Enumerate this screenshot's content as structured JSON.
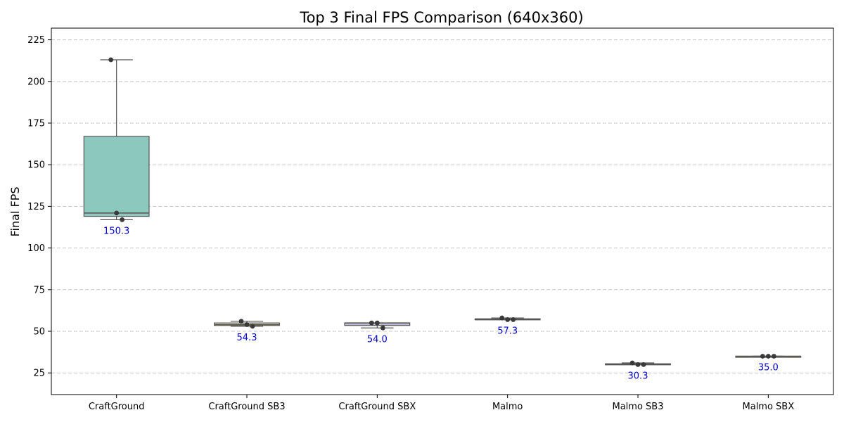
{
  "chart_data": {
    "type": "box",
    "title": "Top 3 Final FPS Comparison (640x360)",
    "xlabel": "",
    "ylabel": "Final FPS",
    "ylim": [
      12,
      232
    ],
    "yticks": [
      25,
      50,
      75,
      100,
      125,
      150,
      175,
      200,
      225
    ],
    "grid": true,
    "categories": [
      "CraftGround",
      "CraftGround SB3",
      "CraftGround SBX",
      "Malmo",
      "Malmo SB3",
      "Malmo SBX"
    ],
    "boxes": [
      {
        "name": "CraftGround",
        "color": "#8dc8be",
        "min": 117,
        "q1": 119,
        "median": 121,
        "q3": 167,
        "max": 213,
        "points": [
          213,
          121,
          117
        ],
        "mean_label": "150.3"
      },
      {
        "name": "CraftGround SB3",
        "color": "#f2f2b6",
        "min": 53,
        "q1": 53.5,
        "median": 54,
        "q3": 55,
        "max": 56,
        "points": [
          56,
          54,
          53
        ],
        "mean_label": "54.3"
      },
      {
        "name": "CraftGround SBX",
        "color": "#bdbad8",
        "min": 52,
        "q1": 53.5,
        "median": 55,
        "q3": 55,
        "max": 55,
        "points": [
          55,
          55,
          52
        ],
        "mean_label": "54.0"
      },
      {
        "name": "Malmo",
        "color": "#f18476",
        "min": 57,
        "q1": 57,
        "median": 57,
        "q3": 57.5,
        "max": 58,
        "points": [
          58,
          57,
          57
        ],
        "mean_label": "57.3"
      },
      {
        "name": "Malmo SB3",
        "color": "#83b1d3",
        "min": 30,
        "q1": 30,
        "median": 30,
        "q3": 30.5,
        "max": 31,
        "points": [
          31,
          30,
          30
        ],
        "mean_label": "30.3"
      },
      {
        "name": "Malmo SBX",
        "color": "#fbb462",
        "min": 35,
        "q1": 35,
        "median": 35,
        "q3": 35,
        "max": 35,
        "points": [
          35,
          35,
          35
        ],
        "mean_label": "35.0"
      }
    ]
  }
}
